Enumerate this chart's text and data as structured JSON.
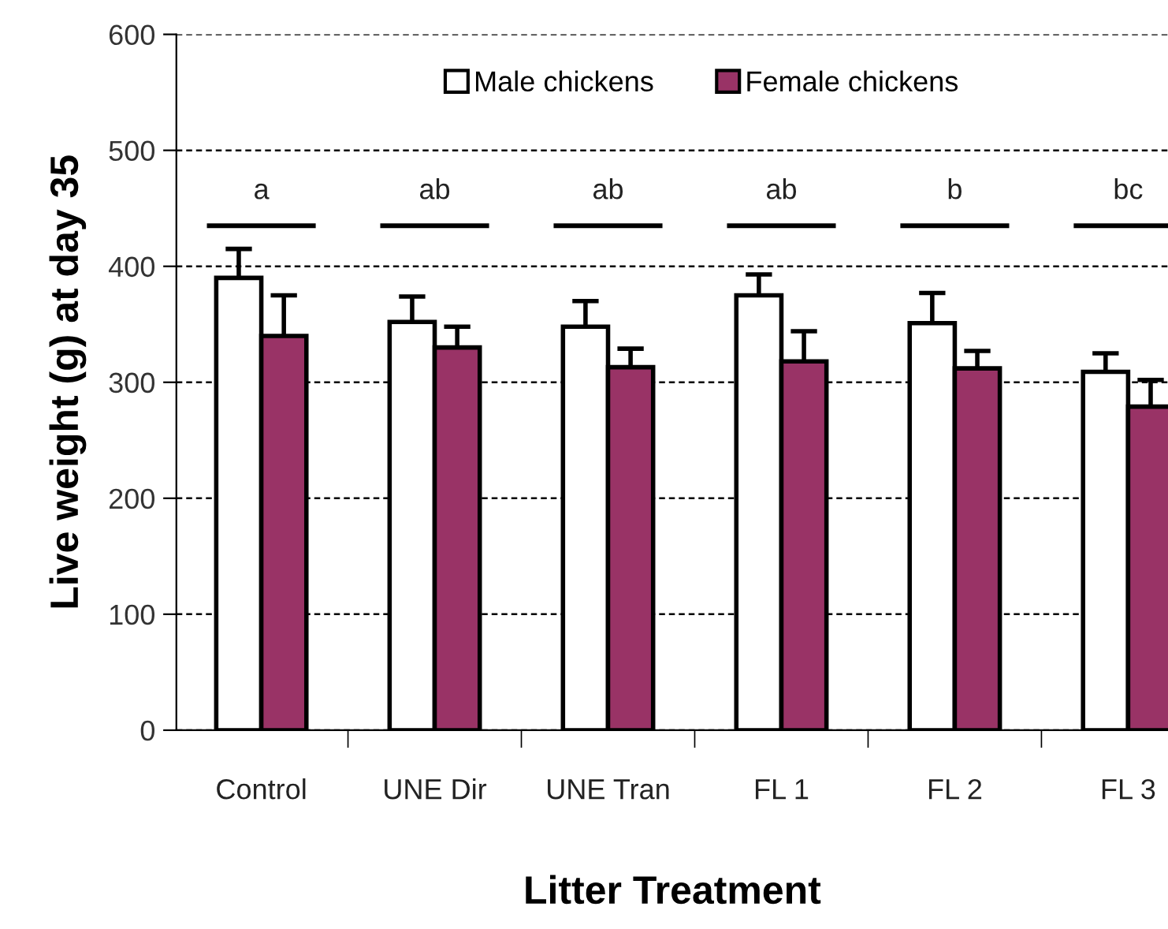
{
  "chart_data": {
    "type": "bar",
    "xlabel": "Litter Treatment",
    "ylabel": "Live weight (g) at day 35",
    "categories": [
      "Control",
      "UNE Dir",
      "UNE Tran",
      "FL 1",
      "FL 2",
      "FL 3"
    ],
    "series": [
      {
        "name": "Male chickens",
        "color": "#ffffff",
        "values": [
          390,
          352,
          348,
          375,
          351,
          309
        ],
        "errors": [
          25,
          22,
          22,
          18,
          26,
          16
        ]
      },
      {
        "name": "Female chickens",
        "color": "#993366",
        "values": [
          340,
          330,
          313,
          318,
          312,
          279
        ],
        "errors": [
          35,
          18,
          16,
          26,
          15,
          23
        ]
      }
    ],
    "ylim": [
      0,
      600
    ],
    "yticks": [
      0,
      100,
      200,
      300,
      400,
      500,
      600
    ],
    "grid": "y",
    "legend": "top",
    "annotations": [
      "a",
      "ab",
      "ab",
      "ab",
      "b",
      "bc"
    ]
  }
}
